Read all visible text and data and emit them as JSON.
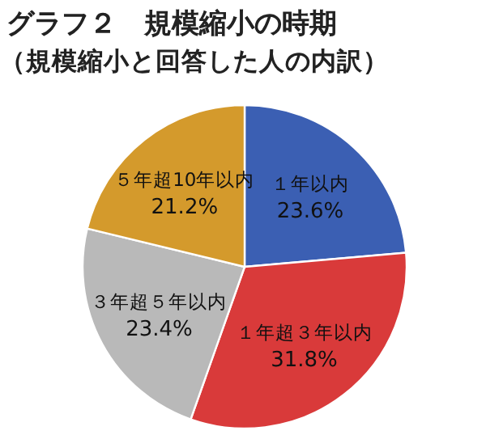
{
  "chart_data": {
    "type": "pie",
    "title": "グラフ２　規模縮小の時期",
    "subtitle": "（規模縮小と回答した人の内訳）",
    "categories": [
      "１年以内",
      "１年超３年以内",
      "３年超５年以内",
      "５年超10年以内"
    ],
    "values": [
      23.6,
      31.8,
      23.4,
      21.2
    ],
    "colors": [
      "#3b5fb3",
      "#d93a3a",
      "#b9b9b9",
      "#d49a2c"
    ],
    "value_labels": [
      "23.6%",
      "31.8%",
      "23.4%",
      "21.2%"
    ]
  }
}
